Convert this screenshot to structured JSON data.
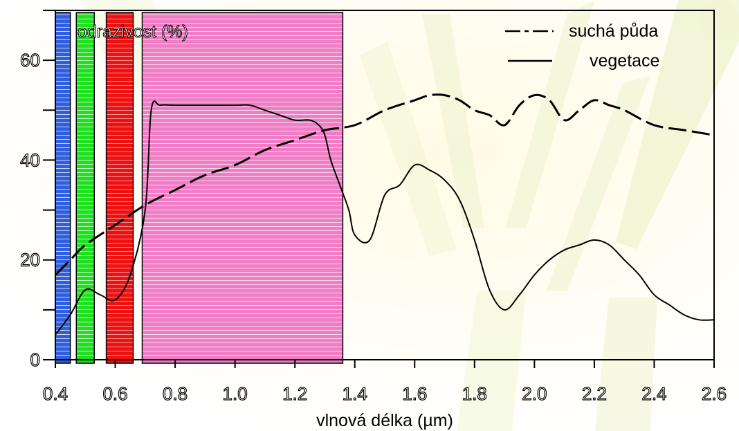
{
  "chart_data": {
    "type": "line",
    "xlabel": "vlnová délka (µm)",
    "ylabel": "odrazivost (%)",
    "xlim": [
      0.4,
      2.6
    ],
    "ylim": [
      0,
      70
    ],
    "x_ticks": [
      "0.4",
      "0.6",
      "0.8",
      "1.0",
      "1.2",
      "1.4",
      "1.6",
      "1.8",
      "2.0",
      "2.2",
      "2.4",
      "2.6"
    ],
    "y_ticks": [
      "0",
      "20",
      "40",
      "60"
    ],
    "legend_position": "top-right",
    "series": [
      {
        "name": "suchá půda",
        "style": "dashed",
        "color": "#000000",
        "x": [
          0.4,
          0.45,
          0.5,
          0.6,
          0.7,
          0.8,
          0.9,
          1.0,
          1.1,
          1.2,
          1.3,
          1.4,
          1.5,
          1.6,
          1.65,
          1.7,
          1.75,
          1.8,
          1.85,
          1.9,
          1.95,
          2.0,
          2.05,
          2.1,
          2.15,
          2.2,
          2.25,
          2.3,
          2.4,
          2.5,
          2.6
        ],
        "values": [
          17,
          20,
          23,
          27,
          31,
          34,
          37,
          39,
          42,
          44,
          46,
          47,
          50,
          52,
          53,
          53,
          52,
          50,
          49,
          47,
          51,
          53,
          52,
          48,
          50,
          52,
          51,
          50,
          47,
          46,
          45
        ]
      },
      {
        "name": "vegetace",
        "style": "solid",
        "color": "#000000",
        "x": [
          0.4,
          0.45,
          0.5,
          0.55,
          0.6,
          0.65,
          0.7,
          0.72,
          0.75,
          0.8,
          0.9,
          1.0,
          1.05,
          1.1,
          1.15,
          1.2,
          1.25,
          1.28,
          1.3,
          1.32,
          1.35,
          1.38,
          1.4,
          1.45,
          1.5,
          1.55,
          1.6,
          1.65,
          1.7,
          1.75,
          1.8,
          1.85,
          1.9,
          1.95,
          2.0,
          2.05,
          2.1,
          2.15,
          2.2,
          2.25,
          2.3,
          2.35,
          2.4,
          2.45,
          2.5,
          2.55,
          2.6
        ],
        "values": [
          5,
          9,
          14,
          13,
          12,
          17,
          30,
          50,
          51,
          51,
          51,
          51,
          51,
          50,
          49,
          48,
          48,
          47,
          45,
          40,
          35,
          30,
          25,
          24,
          33,
          35,
          39,
          38,
          36,
          32,
          24,
          14,
          10,
          13,
          17,
          20,
          22,
          23,
          24,
          23,
          20,
          17,
          13,
          11,
          9,
          8,
          8
        ]
      }
    ],
    "bands": [
      {
        "x0": 0.4,
        "x1": 0.45,
        "color": "#3366dd"
      },
      {
        "x0": 0.47,
        "x1": 0.53,
        "color": "#22dd22"
      },
      {
        "x0": 0.57,
        "x1": 0.66,
        "color": "#ee1111"
      },
      {
        "x0": 0.69,
        "x1": 1.36,
        "color": "#ee88cc"
      }
    ]
  }
}
